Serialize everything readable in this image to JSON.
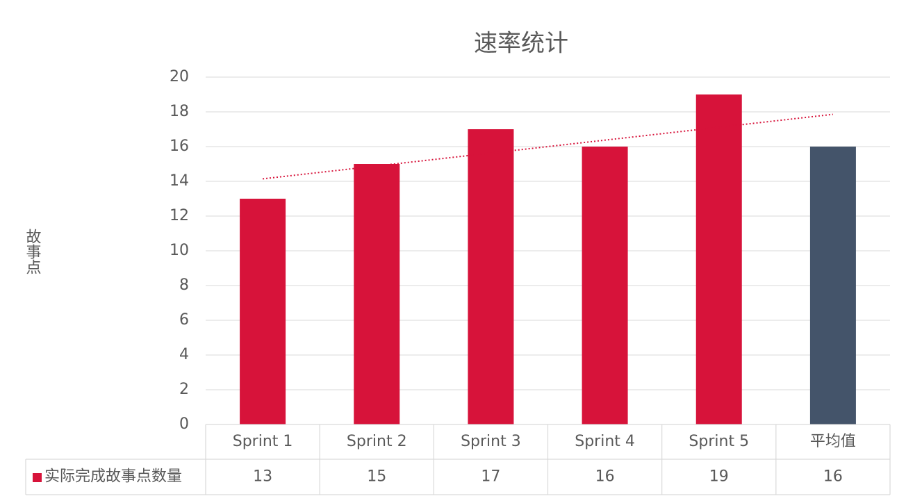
{
  "chart_data": {
    "type": "bar",
    "title": "速率统计",
    "y_label": "故事点",
    "categories": [
      "Sprint 1",
      "Sprint 2",
      "Sprint 3",
      "Sprint 4",
      "Sprint 5",
      "平均值"
    ],
    "series": [
      {
        "name": "实际完成故事点数量",
        "color": "#d7133a",
        "point_colors": [
          "#d7133a",
          "#d7133a",
          "#d7133a",
          "#d7133a",
          "#d7133a",
          "#44546a"
        ],
        "values": [
          13,
          15,
          17,
          16,
          19,
          16
        ]
      }
    ],
    "ylim": [
      0,
      20
    ],
    "yticks": [
      0,
      2,
      4,
      6,
      8,
      10,
      12,
      14,
      16,
      18,
      20
    ],
    "grid": true,
    "trendline": "linear",
    "data_table": true
  }
}
